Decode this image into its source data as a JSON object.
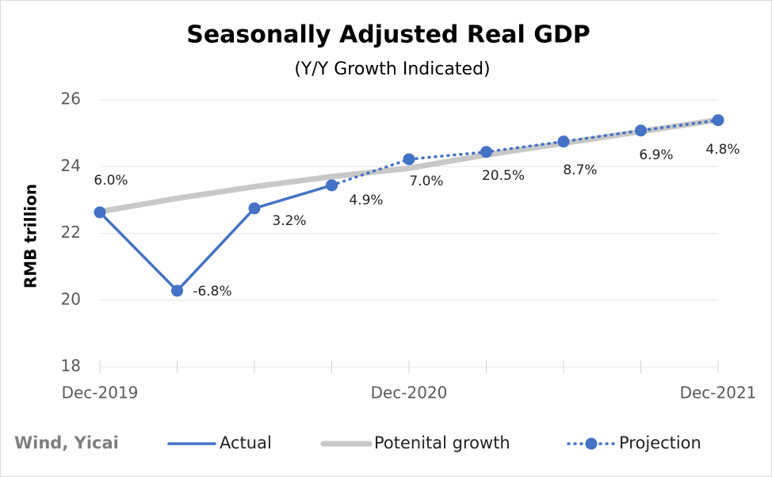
{
  "chart_data": {
    "type": "line",
    "title": "Seasonally Adjusted Real GDP",
    "subtitle": "(Y/Y Growth Indicated)",
    "y_label": "RMB trillion",
    "source": "Wind, Yicai",
    "categories": [
      "Dec-2019",
      null,
      null,
      null,
      "Dec-2020",
      null,
      null,
      null,
      "Dec-2021"
    ],
    "series": [
      {
        "name": "Actual",
        "color": "#4472c4",
        "style": "solid",
        "values": [
          22.63,
          20.28,
          22.75,
          23.44,
          null,
          null,
          null,
          null,
          null
        ]
      },
      {
        "name": "Potenital growth",
        "color": "#c8c8c8",
        "style": "thick",
        "values": [
          22.65,
          23.05,
          23.4,
          23.7,
          23.95,
          24.35,
          24.7,
          25.05,
          25.4
        ]
      },
      {
        "name": "Projection",
        "color": "#4472c4",
        "style": "dotted",
        "values": [
          null,
          null,
          null,
          23.44,
          24.22,
          24.44,
          24.75,
          25.08,
          25.39
        ]
      }
    ],
    "annotations": [
      "6.0%",
      "-6.8%",
      "3.2%",
      "4.9%",
      "7.0%",
      "20.5%",
      "8.7%",
      "6.9%",
      "4.8%"
    ],
    "ylim": [
      18,
      26
    ],
    "yticks": [
      18,
      20,
      22,
      24,
      26
    ],
    "grid": true
  }
}
